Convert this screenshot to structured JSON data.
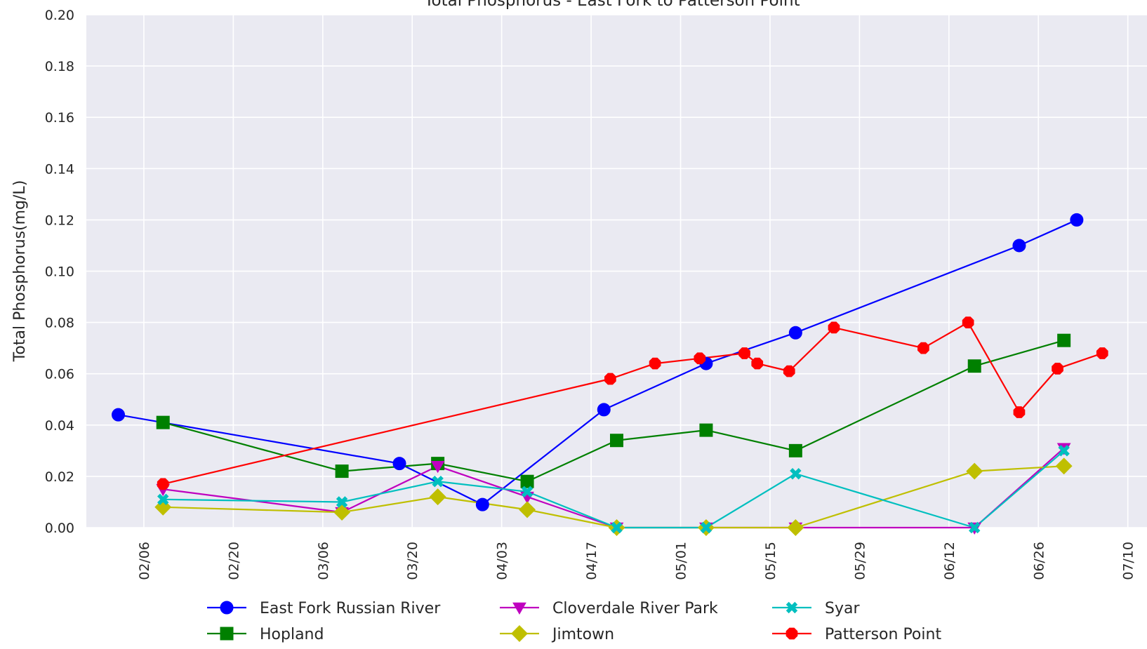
{
  "chart_data": {
    "type": "line",
    "title": "Total Phosphorus - East Fork to Patterson Point",
    "xlabel": "",
    "ylabel": "Total Phosphorus(mg/L)",
    "ylim": [
      0,
      0.2
    ],
    "xlim": [
      "2025-01-28",
      "2025-07-13"
    ],
    "yticks": [
      "0.00",
      "0.02",
      "0.04",
      "0.06",
      "0.08",
      "0.10",
      "0.12",
      "0.14",
      "0.16",
      "0.18",
      "0.20"
    ],
    "xticks": [
      {
        "date": "2025-02-06",
        "label": "02/06"
      },
      {
        "date": "2025-02-20",
        "label": "02/20"
      },
      {
        "date": "2025-03-06",
        "label": "03/06"
      },
      {
        "date": "2025-03-20",
        "label": "03/20"
      },
      {
        "date": "2025-04-03",
        "label": "04/03"
      },
      {
        "date": "2025-04-17",
        "label": "04/17"
      },
      {
        "date": "2025-05-01",
        "label": "05/01"
      },
      {
        "date": "2025-05-15",
        "label": "05/15"
      },
      {
        "date": "2025-05-29",
        "label": "05/29"
      },
      {
        "date": "2025-06-12",
        "label": "06/12"
      },
      {
        "date": "2025-06-26",
        "label": "06/26"
      },
      {
        "date": "2025-07-10",
        "label": "07/10"
      }
    ],
    "grid": true,
    "legend_position": "bottom",
    "series": [
      {
        "name": "East Fork Russian River",
        "color": "#0000ff",
        "marker": "circle",
        "points": [
          [
            "2025-02-02",
            0.044
          ],
          [
            "2025-03-18",
            0.025
          ],
          [
            "2025-03-31",
            0.009
          ],
          [
            "2025-04-19",
            0.046
          ],
          [
            "2025-05-05",
            0.064
          ],
          [
            "2025-05-19",
            0.076
          ],
          [
            "2025-06-23",
            0.11
          ],
          [
            "2025-07-02",
            0.12
          ]
        ]
      },
      {
        "name": "Hopland",
        "color": "#008000",
        "marker": "square",
        "points": [
          [
            "2025-02-09",
            0.041
          ],
          [
            "2025-03-09",
            0.022
          ],
          [
            "2025-03-24",
            0.025
          ],
          [
            "2025-04-07",
            0.018
          ],
          [
            "2025-04-21",
            0.034
          ],
          [
            "2025-05-05",
            0.038
          ],
          [
            "2025-05-19",
            0.03
          ],
          [
            "2025-06-16",
            0.063
          ],
          [
            "2025-06-30",
            0.073
          ]
        ]
      },
      {
        "name": "Cloverdale River Park",
        "color": "#bf00bf",
        "marker": "triangle-down",
        "points": [
          [
            "2025-02-09",
            0.015
          ],
          [
            "2025-03-09",
            0.006
          ],
          [
            "2025-03-24",
            0.024
          ],
          [
            "2025-04-07",
            0.012
          ],
          [
            "2025-04-21",
            0.0
          ],
          [
            "2025-05-05",
            0.0
          ],
          [
            "2025-05-19",
            0.0
          ],
          [
            "2025-06-16",
            0.0
          ],
          [
            "2025-06-30",
            0.031
          ]
        ]
      },
      {
        "name": "Jimtown",
        "color": "#bfbf00",
        "marker": "diamond",
        "points": [
          [
            "2025-02-09",
            0.008
          ],
          [
            "2025-03-09",
            0.006
          ],
          [
            "2025-03-24",
            0.012
          ],
          [
            "2025-04-07",
            0.007
          ],
          [
            "2025-04-21",
            0.0
          ],
          [
            "2025-05-05",
            0.0
          ],
          [
            "2025-05-19",
            0.0
          ],
          [
            "2025-06-16",
            0.022
          ],
          [
            "2025-06-30",
            0.024
          ]
        ]
      },
      {
        "name": "Syar",
        "color": "#00bfbf",
        "marker": "x",
        "points": [
          [
            "2025-02-09",
            0.011
          ],
          [
            "2025-03-09",
            0.01
          ],
          [
            "2025-03-24",
            0.018
          ],
          [
            "2025-04-07",
            0.014
          ],
          [
            "2025-04-21",
            0.0
          ],
          [
            "2025-05-05",
            0.0
          ],
          [
            "2025-05-19",
            0.021
          ],
          [
            "2025-06-16",
            0.0
          ],
          [
            "2025-06-30",
            0.03
          ]
        ]
      },
      {
        "name": "Patterson Point",
        "color": "#ff0000",
        "marker": "octagon",
        "points": [
          [
            "2025-02-09",
            0.017
          ],
          [
            "2025-04-20",
            0.058
          ],
          [
            "2025-04-27",
            0.064
          ],
          [
            "2025-05-04",
            0.066
          ],
          [
            "2025-05-11",
            0.068
          ],
          [
            "2025-05-13",
            0.064
          ],
          [
            "2025-05-18",
            0.061
          ],
          [
            "2025-05-25",
            0.078
          ],
          [
            "2025-06-08",
            0.07
          ],
          [
            "2025-06-15",
            0.08
          ],
          [
            "2025-06-23",
            0.045
          ],
          [
            "2025-06-29",
            0.062
          ],
          [
            "2025-07-06",
            0.068
          ]
        ]
      }
    ]
  }
}
